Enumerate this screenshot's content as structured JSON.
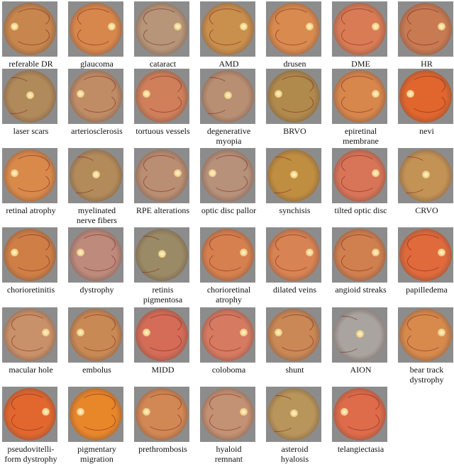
{
  "figure": {
    "items": [
      {
        "label": [
          "referable DR"
        ],
        "tone": "#c7864d",
        "disc": "left"
      },
      {
        "label": [
          "glaucoma"
        ],
        "tone": "#d8874c",
        "disc": "right"
      },
      {
        "label": [
          "cataract"
        ],
        "tone": "#b69579",
        "disc": "right"
      },
      {
        "label": [
          "AMD"
        ],
        "tone": "#c98f4d",
        "disc": "right"
      },
      {
        "label": [
          "drusen"
        ],
        "tone": "#d98a4f",
        "disc": "right"
      },
      {
        "label": [
          "DME"
        ],
        "tone": "#d97b55",
        "disc": "right"
      },
      {
        "label": [
          "HR"
        ],
        "tone": "#c87a52",
        "disc": "right"
      },
      {
        "label": [
          "laser scars"
        ],
        "tone": "#b08a5a",
        "disc": "center"
      },
      {
        "label": [
          "arteriosclerosis"
        ],
        "tone": "#bf8c66",
        "disc": "left"
      },
      {
        "label": [
          "tortuous vessels"
        ],
        "tone": "#cf7f5a",
        "disc": "left"
      },
      {
        "label": [
          "degenerative",
          "myopia"
        ],
        "tone": "#b98f73",
        "disc": "center"
      },
      {
        "label": [
          "BRVO"
        ],
        "tone": "#b08a4c",
        "disc": "left"
      },
      {
        "label": [
          "epiretinal",
          "membrane"
        ],
        "tone": "#d7864c",
        "disc": "right"
      },
      {
        "label": [
          "nevi"
        ],
        "tone": "#e0662e",
        "disc": "left"
      },
      {
        "label": [
          "retinal atrophy"
        ],
        "tone": "#d98a4a",
        "disc": "left"
      },
      {
        "label": [
          "myelinated",
          "nerve fibers"
        ],
        "tone": "#b38b5a",
        "disc": "center"
      },
      {
        "label": [
          "RPE alterations"
        ],
        "tone": "#b98e73",
        "disc": "right"
      },
      {
        "label": [
          "optic disc pallor"
        ],
        "tone": "#b7917a",
        "disc": "left"
      },
      {
        "label": [
          "synchisis"
        ],
        "tone": "#c08e40",
        "disc": "center"
      },
      {
        "label": [
          "tilted optic disc"
        ],
        "tone": "#d87458",
        "disc": "right"
      },
      {
        "label": [
          "CRVO"
        ],
        "tone": "#c39355",
        "disc": "center"
      },
      {
        "label": [
          "chorioretinitis"
        ],
        "tone": "#cf7f46",
        "disc": "left"
      },
      {
        "label": [
          "dystrophy"
        ],
        "tone": "#bd8a7c",
        "disc": "left"
      },
      {
        "label": [
          "retinis",
          "pigmentosa"
        ],
        "tone": "#9a8b66",
        "disc": "center"
      },
      {
        "label": [
          "chorioretinal",
          "atrophy"
        ],
        "tone": "#d7804f",
        "disc": "right"
      },
      {
        "label": [
          "dilated veins"
        ],
        "tone": "#d88353",
        "disc": "right"
      },
      {
        "label": [
          "angioid streaks"
        ],
        "tone": "#d07f4f",
        "disc": "right"
      },
      {
        "label": [
          "papilledema"
        ],
        "tone": "#e06a3b",
        "disc": "right"
      },
      {
        "label": [
          "macular hole"
        ],
        "tone": "#c99169",
        "disc": "right"
      },
      {
        "label": [
          "embolus"
        ],
        "tone": "#c98954",
        "disc": "left"
      },
      {
        "label": [
          "MIDD"
        ],
        "tone": "#d46c58",
        "disc": "left"
      },
      {
        "label": [
          "coloboma"
        ],
        "tone": "#d77a62",
        "disc": "right"
      },
      {
        "label": [
          "shunt"
        ],
        "tone": "#c98855",
        "disc": "left"
      },
      {
        "label": [
          "AION"
        ],
        "tone": "#a9a4a0",
        "disc": "center"
      },
      {
        "label": [
          "bear track",
          "dystrophy"
        ],
        "tone": "#d88a4c",
        "disc": "right"
      },
      {
        "label": [
          "pseudovitelli-",
          "form dystrophy"
        ],
        "tone": "#e2672e",
        "disc": "right"
      },
      {
        "label": [
          "pigmentary",
          "migration"
        ],
        "tone": "#e8862a",
        "disc": "left"
      },
      {
        "label": [
          "prethrombosis"
        ],
        "tone": "#d28854",
        "disc": "left"
      },
      {
        "label": [
          "hyaloid",
          "remnant"
        ],
        "tone": "#c39173",
        "disc": "right"
      },
      {
        "label": [
          "asteroid",
          "hyalosis"
        ],
        "tone": "#b8955a",
        "disc": "center"
      },
      {
        "label": [
          "telangiectasia"
        ],
        "tone": "#de6b4a",
        "disc": "left"
      }
    ]
  }
}
